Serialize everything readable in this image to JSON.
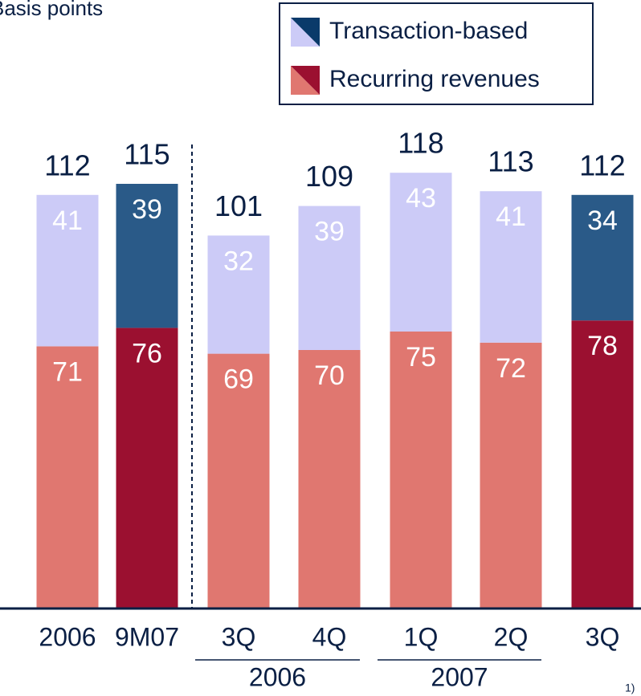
{
  "chart_data": {
    "type": "bar",
    "stacked": true,
    "subtitle": "Basis points",
    "categories": [
      "2006",
      "9M07",
      "3Q",
      "4Q",
      "1Q",
      "2Q",
      "3Q"
    ],
    "groups": [
      "2006",
      "2007"
    ],
    "series": [
      {
        "name": "Recurring revenues",
        "color": "#e07770",
        "colors": [
          "#e07770",
          "#9b1030",
          "#e07770",
          "#e07770",
          "#e07770",
          "#e07770",
          "#9b1030"
        ],
        "values": [
          71,
          76,
          69,
          70,
          75,
          72,
          78
        ]
      },
      {
        "name": "Transaction-based",
        "color": "#cccbf7",
        "colors": [
          "#cccbf7",
          "#2a5a88",
          "#cccbf7",
          "#cccbf7",
          "#cccbf7",
          "#cccbf7",
          "#2a5a88"
        ],
        "values": [
          41,
          39,
          32,
          39,
          43,
          41,
          34
        ]
      }
    ],
    "totals": [
      112,
      115,
      101,
      109,
      118,
      113,
      112
    ],
    "legend_dark_colors": [
      "#9b1030",
      "#0a3a6a"
    ],
    "footnote": "1)"
  }
}
